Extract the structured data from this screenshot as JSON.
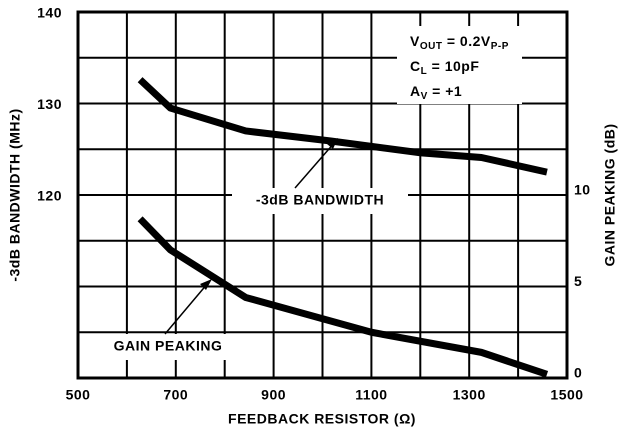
{
  "chart_data": {
    "type": "line",
    "xlabel": "FEEDBACK RESISTOR (Ω)",
    "ylabel": "-3dB BANDWIDTH (MHz)",
    "y2label": "GAIN PEAKING (dB)",
    "xlim": [
      500,
      1500
    ],
    "xticks": [
      500,
      700,
      900,
      1100,
      1300,
      1500
    ],
    "xgrid": [
      600,
      800,
      1000,
      1200,
      1400
    ],
    "ylim": [
      100,
      140
    ],
    "yticks": [
      120,
      130,
      140
    ],
    "ygrid": [
      105,
      110,
      115,
      125,
      135
    ],
    "y2lim": [
      0,
      20
    ],
    "y2ticks": [
      0,
      5,
      10
    ],
    "series": [
      {
        "name": "-3dB BANDWIDTH",
        "color": "#000000",
        "x": [
          627,
          689,
          843,
          1017,
          1202,
          1325,
          1459
        ],
        "values": [
          132.6,
          129.5,
          127,
          125.9,
          124.6,
          124.1,
          122.5
        ]
      },
      {
        "name": "GAIN PEAKING",
        "color": "#000000",
        "axis": "y2",
        "x": [
          627,
          689,
          843,
          1100,
          1325,
          1459
        ],
        "values": [
          8.7,
          7.0,
          4.4,
          2.5,
          1.4,
          0.2
        ]
      }
    ],
    "annotations": [
      [
        {
          "t": "V"
        },
        {
          "t": "OUT",
          "sub": true
        },
        {
          "t": " = 0.2V"
        },
        {
          "t": "P-P",
          "sub": true
        }
      ],
      [
        {
          "t": "C"
        },
        {
          "t": "L",
          "sub": true
        },
        {
          "t": " = 10pF"
        }
      ],
      [
        {
          "t": "A"
        },
        {
          "t": "V",
          "sub": true
        },
        {
          "t": " = +1"
        }
      ]
    ]
  }
}
